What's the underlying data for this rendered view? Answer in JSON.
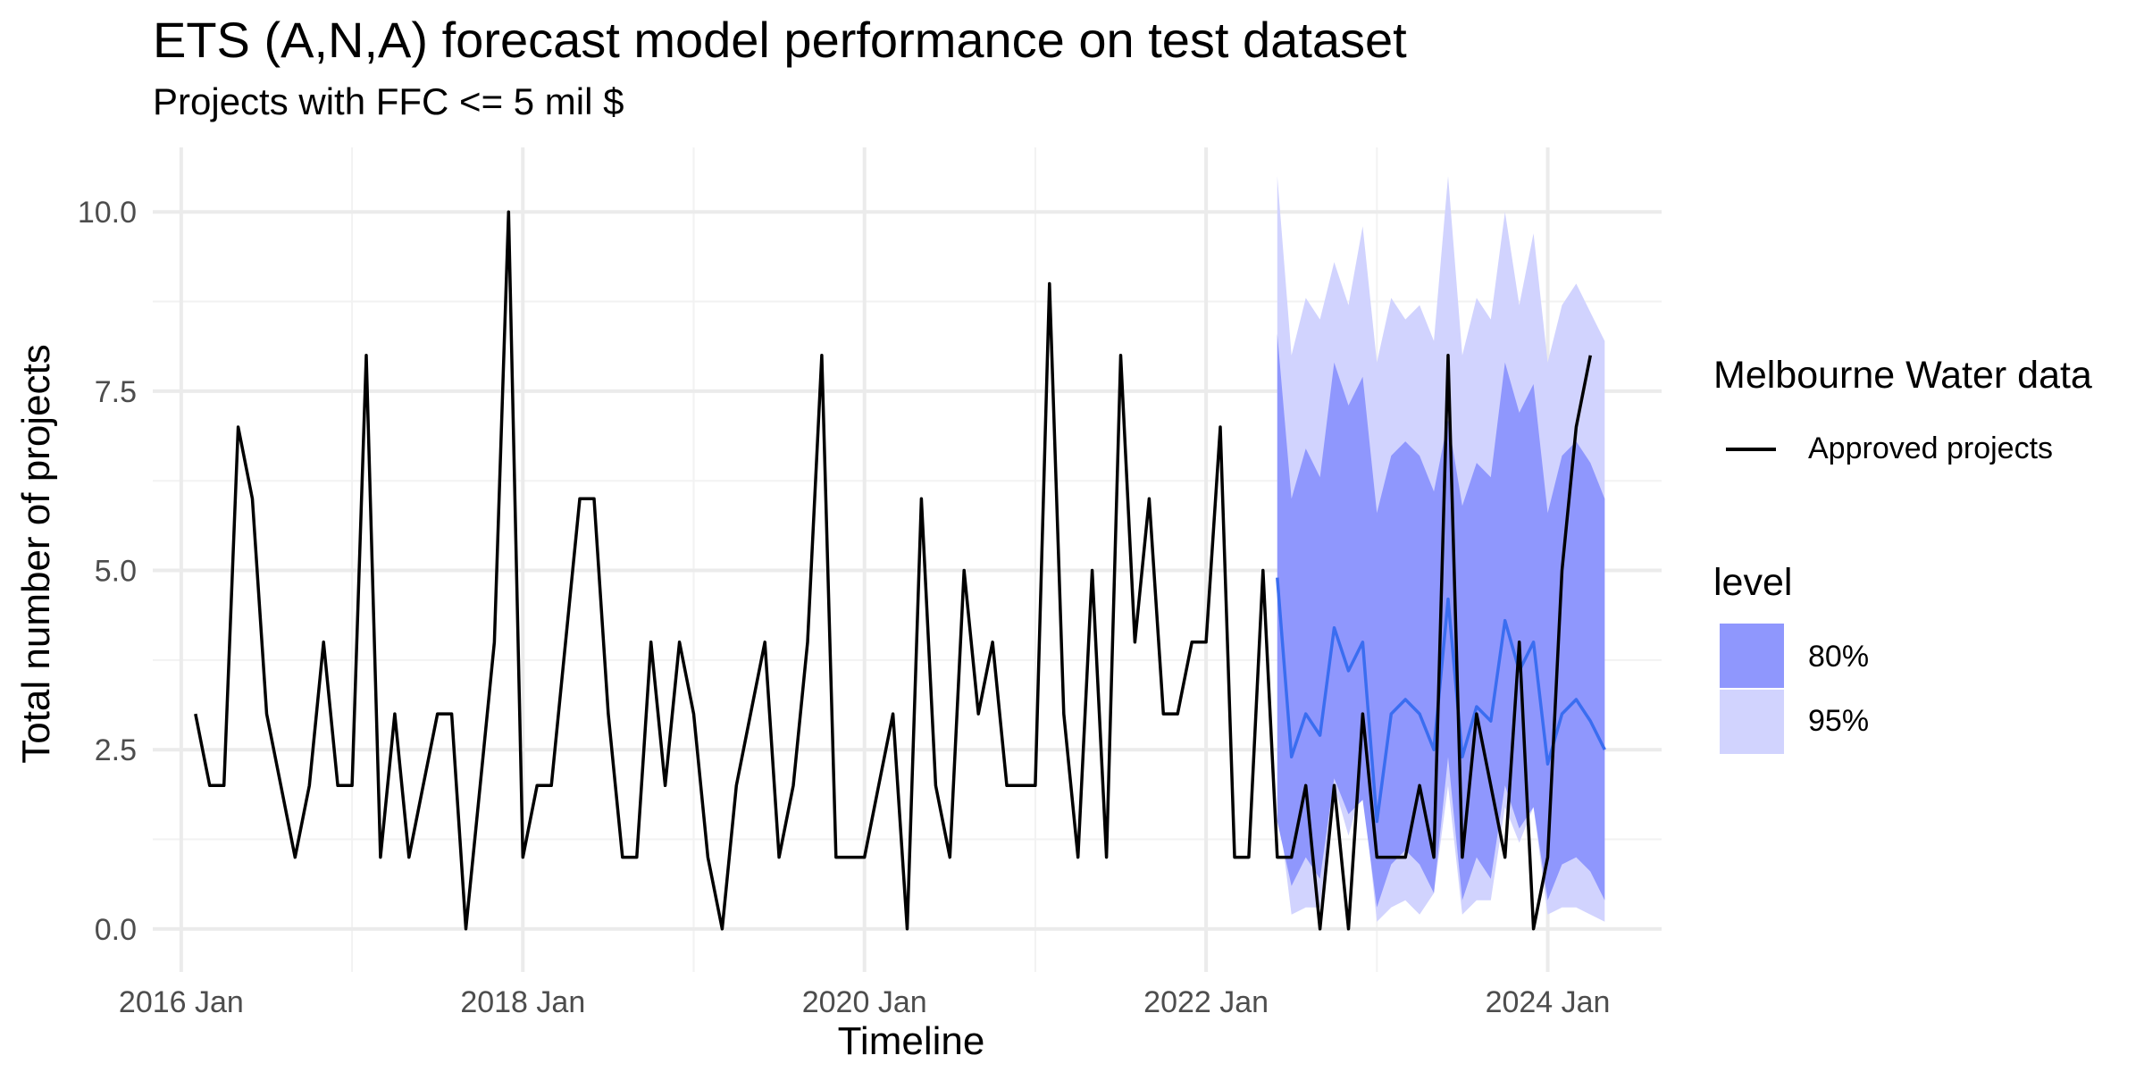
{
  "chart_data": {
    "type": "line",
    "title": "ETS (A,N,A) forecast model performance on test dataset",
    "subtitle": "Projects with FFC <= 5 mil $",
    "xlabel": "Timeline",
    "ylabel": "Total number of projects",
    "xlim": [
      "2015-11",
      "2024-09"
    ],
    "ylim": [
      -0.6,
      10.9
    ],
    "x_ticks": [
      {
        "date": "2016-01",
        "label": "2016 Jan"
      },
      {
        "date": "2018-01",
        "label": "2018 Jan"
      },
      {
        "date": "2020-01",
        "label": "2020 Jan"
      },
      {
        "date": "2022-01",
        "label": "2022 Jan"
      },
      {
        "date": "2024-01",
        "label": "2024 Jan"
      }
    ],
    "x_minor_ticks": [
      "2017-01",
      "2019-01",
      "2021-01",
      "2023-01"
    ],
    "y_ticks": [
      {
        "value": 0,
        "label": "0.0"
      },
      {
        "value": 2.5,
        "label": "2.5"
      },
      {
        "value": 5,
        "label": "5.0"
      },
      {
        "value": 7.5,
        "label": "7.5"
      },
      {
        "value": 10,
        "label": "10.0"
      }
    ],
    "y_minor_ticks": [
      1.25,
      3.75,
      6.25,
      8.75
    ],
    "grid": true,
    "legend_placement": "right",
    "series": [
      {
        "name": "Approved projects",
        "color": "#000000",
        "start": "2016-02",
        "values": [
          3,
          2,
          2,
          7,
          6,
          3,
          2,
          1,
          2,
          4,
          2,
          2,
          8,
          1,
          3,
          1,
          2,
          3,
          3,
          0,
          2,
          4,
          10,
          1,
          2,
          2,
          4,
          6,
          6,
          3,
          1,
          1,
          4,
          2,
          4,
          3,
          1,
          0,
          2,
          3,
          4,
          1,
          2,
          4,
          8,
          1,
          1,
          1,
          2,
          3,
          0,
          6,
          2,
          1,
          5,
          3,
          4,
          2,
          2,
          2,
          9,
          3,
          1,
          5,
          1,
          8,
          4,
          6,
          3,
          3,
          4,
          4,
          7,
          1,
          1,
          5,
          1,
          1,
          2,
          0,
          2,
          0,
          3,
          1,
          1,
          1,
          2,
          1,
          8,
          1,
          3,
          2,
          1,
          4,
          0,
          1,
          5,
          7,
          8
        ]
      }
    ],
    "forecast": {
      "start": "2022-06",
      "color_mean": "#3a6df0",
      "mean": [
        4.9,
        2.4,
        3.0,
        2.7,
        4.2,
        3.6,
        4.0,
        1.5,
        3.0,
        3.2,
        3.0,
        2.5,
        4.6,
        2.4,
        3.1,
        2.9,
        4.3,
        3.6,
        4.0,
        2.3,
        3.0,
        3.2,
        2.9,
        2.5
      ],
      "lo80": [
        1.5,
        0.6,
        1.0,
        0.7,
        2.1,
        1.6,
        1.8,
        0.3,
        0.9,
        1.1,
        0.9,
        0.5,
        2.4,
        0.4,
        1.0,
        0.7,
        2.0,
        1.4,
        1.7,
        0.4,
        0.9,
        1.0,
        0.8,
        0.4
      ],
      "hi80": [
        8.3,
        6.0,
        6.7,
        6.3,
        7.9,
        7.3,
        7.7,
        5.8,
        6.6,
        6.8,
        6.6,
        6.1,
        7.1,
        5.9,
        6.5,
        6.3,
        7.9,
        7.2,
        7.6,
        5.8,
        6.6,
        6.8,
        6.5,
        6.0
      ],
      "lo95": [
        1.8,
        0.2,
        0.3,
        0.3,
        2.0,
        1.3,
        2.0,
        0.1,
        0.3,
        0.4,
        0.2,
        0.5,
        2.0,
        0.2,
        0.4,
        0.4,
        1.7,
        1.2,
        1.7,
        0.2,
        0.3,
        0.3,
        0.2,
        0.1
      ],
      "hi95": [
        10.5,
        8.0,
        8.8,
        8.5,
        9.3,
        8.7,
        9.8,
        7.9,
        8.8,
        8.5,
        8.7,
        8.2,
        10.5,
        8.0,
        8.8,
        8.5,
        10.0,
        8.7,
        9.7,
        7.9,
        8.7,
        9.0,
        8.6,
        8.2
      ]
    },
    "legend": {
      "line_title": "Melbourne Water data",
      "line_label": "Approved projects",
      "level_title": "level",
      "levels": [
        {
          "label": "80%",
          "color": "#8f97fd"
        },
        {
          "label": "95%",
          "color": "#d1d3fe"
        }
      ]
    }
  }
}
